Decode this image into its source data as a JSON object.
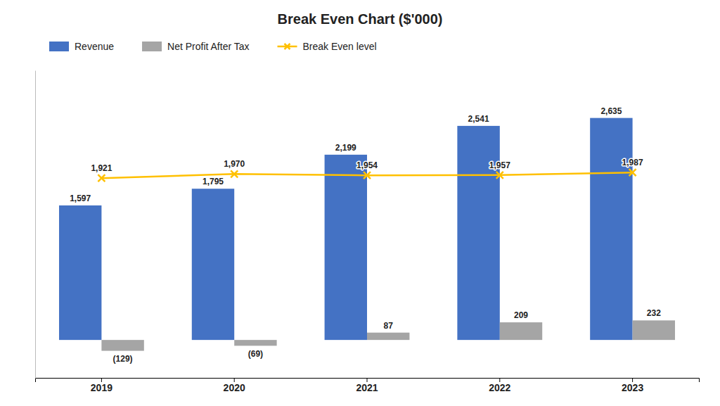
{
  "chart_data": {
    "type": "bar",
    "title": "Break Even Chart ($'000)",
    "categories": [
      "2019",
      "2020",
      "2021",
      "2022",
      "2023"
    ],
    "series": [
      {
        "name": "Revenue",
        "color": "#4472C4",
        "values": [
          1597,
          1795,
          2199,
          2541,
          2635
        ],
        "value_labels": [
          "1,597",
          "1,795",
          "2,199",
          "2,541",
          "2,635"
        ]
      },
      {
        "name": "Net Profit After Tax",
        "color": "#A5A5A5",
        "values": [
          -129,
          -69,
          87,
          209,
          232
        ],
        "value_labels": [
          "(129)",
          "(69)",
          "87",
          "209",
          "232"
        ]
      },
      {
        "name": "Break Even level",
        "type": "line",
        "marker": "x",
        "color": "#FFC000",
        "values": [
          1921,
          1970,
          1954,
          1957,
          1987
        ],
        "value_labels": [
          "1,921",
          "1,970",
          "1,954",
          "1,957",
          "1,987"
        ]
      }
    ],
    "ylim": [
      -450,
      3200
    ],
    "data_labels": true,
    "tick_labels": "x",
    "grid": false
  }
}
